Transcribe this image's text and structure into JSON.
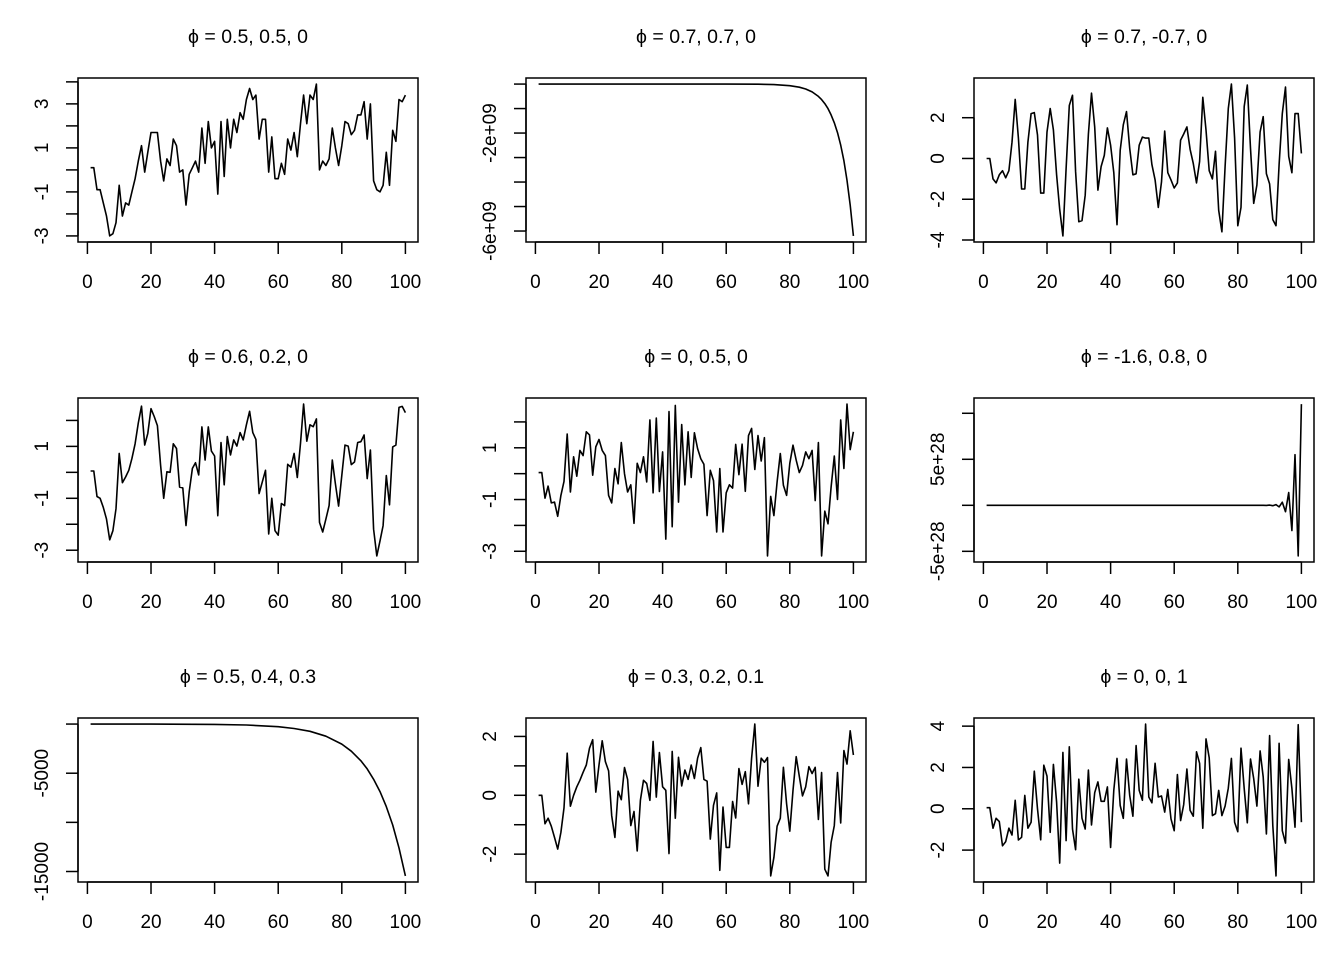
{
  "chart_data": [
    {
      "type": "line",
      "title": "ϕ = 0.5, 0.5, 0",
      "xlim": [
        1,
        100
      ],
      "xticks": [
        0,
        20,
        40,
        60,
        80,
        100
      ],
      "xtick_labels": [
        "0",
        "20",
        "40",
        "60",
        "80",
        "100"
      ],
      "yticks": [
        -3,
        -2,
        -1,
        0,
        1,
        2,
        3,
        4
      ],
      "ytick_labels": [
        "-3",
        "",
        "-1",
        "",
        "1",
        "",
        "3",
        ""
      ],
      "y": [
        0.1,
        0.1,
        -0.9,
        -0.9,
        -1.5,
        -2.1,
        -3.0,
        -2.9,
        -2.4,
        -0.7,
        -2.1,
        -1.5,
        -1.6,
        -1.0,
        -0.4,
        0.4,
        1.1,
        -0.1,
        0.8,
        1.7,
        1.7,
        1.7,
        0.4,
        -0.5,
        0.5,
        0.2,
        1.4,
        1.1,
        -0.1,
        0.0,
        -1.6,
        -0.2,
        0.1,
        0.4,
        -0.1,
        1.9,
        0.3,
        2.2,
        1.0,
        1.3,
        -1.1,
        2.2,
        -0.3,
        2.3,
        1.0,
        2.3,
        1.7,
        2.6,
        2.3,
        3.2,
        3.7,
        3.2,
        3.4,
        1.4,
        2.3,
        2.3,
        -0.1,
        1.5,
        -0.4,
        -0.4,
        0.3,
        -0.2,
        1.4,
        0.9,
        1.7,
        0.6,
        2.1,
        3.4,
        2.1,
        3.4,
        3.2,
        3.9,
        0.0,
        0.4,
        0.2,
        0.5,
        1.9,
        1.0,
        0.2,
        1.1,
        2.2,
        2.1,
        1.6,
        1.8,
        2.5,
        2.5,
        3.1,
        1.4,
        3.0,
        -0.5,
        -0.9,
        -1.0,
        -0.7,
        0.8,
        -0.7,
        1.8,
        1.3,
        3.2,
        3.1,
        3.4
      ]
    },
    {
      "type": "line",
      "title": "ϕ = 0.7, 0.7, 0",
      "xlim": [
        1,
        100
      ],
      "xticks": [
        0,
        20,
        40,
        60,
        80,
        100
      ],
      "xtick_labels": [
        "0",
        "20",
        "40",
        "60",
        "80",
        "100"
      ],
      "yticks": [
        0,
        -1000000000.0,
        -2000000000.0,
        -3000000000.0,
        -4000000000.0,
        -5000000000.0,
        -6000000000.0
      ],
      "ytick_labels": [
        "",
        "",
        "-2e+09",
        "",
        "",
        "",
        "-6e+09"
      ],
      "x": [
        1,
        40,
        60,
        70,
        75,
        80,
        83,
        85,
        87,
        89,
        90,
        91,
        92,
        93,
        94,
        95,
        96,
        97,
        98,
        99,
        100
      ],
      "y": [
        0,
        -7200,
        -680000.0,
        -6600000.0,
        -20800000.0,
        -65000000.0,
        -129000000.0,
        -203000000.0,
        -320000000.0,
        -505000000.0,
        -635000000.0,
        -797000000.0,
        -1000000000.0,
        -1260000000.0,
        -1580000000.0,
        -1980000000.0,
        -2490000000.0,
        -3130000000.0,
        -3930000000.0,
        -4940000000.0,
        -6200000000.0
      ]
    },
    {
      "type": "line",
      "title": "ϕ = 0.7, -0.7, 0",
      "xlim": [
        1,
        100
      ],
      "xticks": [
        0,
        20,
        40,
        60,
        80,
        100
      ],
      "xtick_labels": [
        "0",
        "20",
        "40",
        "60",
        "80",
        "100"
      ],
      "yticks": [
        -4,
        -2,
        0,
        2
      ],
      "ytick_labels": [
        "-4",
        "-2",
        "0",
        "2"
      ],
      "y": [
        0,
        0,
        -1,
        -1.2,
        -0.8,
        -0.6,
        -0.95,
        -0.6,
        0.8,
        2.9,
        1,
        -1.5,
        -1.5,
        0.8,
        2.2,
        2.25,
        1.15,
        -1.7,
        -1.7,
        1.3,
        2.45,
        1.4,
        -0.8,
        -2.5,
        -3.8,
        -0.5,
        2.6,
        3.1,
        -0.65,
        -3.1,
        -3.05,
        -1.8,
        1.2,
        3.2,
        1.55,
        -1.55,
        -0.4,
        0.15,
        1.5,
        0.65,
        -0.7,
        -3.25,
        0.4,
        1.65,
        2.3,
        0.5,
        -0.8,
        -0.75,
        0.65,
        1.05,
        1,
        1,
        -0.3,
        -1.05,
        -2.4,
        -1.15,
        1.35,
        -0.7,
        -1.05,
        -1.45,
        -1.2,
        0.9,
        1.2,
        1.55,
        0.45,
        -0.25,
        -1.2,
        -0.15,
        3,
        1.4,
        -0.6,
        -1,
        0.35,
        -2.55,
        -3.6,
        -0.4,
        2.45,
        3.65,
        1,
        -3.3,
        -2.4,
        2.55,
        3.6,
        0.5,
        -2.2,
        -1.3,
        1.3,
        2.05,
        -0.75,
        -1.25,
        -3,
        -3.3,
        -0.3,
        2.2,
        3.5,
        0.1,
        -0.7,
        2.2,
        2.2,
        0.25
      ]
    },
    {
      "type": "line",
      "title": "ϕ = 0.6, 0.2, 0",
      "xlim": [
        1,
        100
      ],
      "xticks": [
        0,
        20,
        40,
        60,
        80,
        100
      ],
      "xtick_labels": [
        "0",
        "20",
        "40",
        "60",
        "80",
        "100"
      ],
      "yticks": [
        -3,
        -2,
        -1,
        0,
        1,
        2
      ],
      "ytick_labels": [
        "-3",
        "",
        "-1",
        "",
        "1",
        ""
      ],
      "y": [
        0.05,
        0.05,
        -0.93,
        -1,
        -1.35,
        -1.8,
        -2.6,
        -2.25,
        -1.4,
        0.73,
        -0.4,
        -0.18,
        0.08,
        0.53,
        1.1,
        1.9,
        2.55,
        1.05,
        1.5,
        2.45,
        2.15,
        1.8,
        0.27,
        -1,
        0.02,
        0,
        1.1,
        0.92,
        -0.57,
        -0.6,
        -2.05,
        -0.75,
        0.15,
        0.37,
        -0.1,
        1.75,
        0.47,
        1.75,
        0.82,
        0.63,
        -1.67,
        1.15,
        -0.48,
        1.38,
        0.67,
        1.25,
        1.01,
        1.53,
        1.25,
        1.83,
        2.35,
        1.53,
        1.27,
        -0.82,
        -0.37,
        0.08,
        -2.37,
        -1,
        -2.25,
        -2.42,
        -1.2,
        -1.28,
        0.31,
        0.2,
        0.73,
        -0.2,
        1.12,
        2.63,
        1.2,
        1.83,
        1.76,
        2.06,
        -1.93,
        -2.3,
        -1.8,
        -1.28,
        0.47,
        -0.44,
        -1.3,
        -0.12,
        1.05,
        1.01,
        0.3,
        0.4,
        1.15,
        1.18,
        1.44,
        -0.24,
        0.86,
        -2.19,
        -3.22,
        -2.64,
        -2.05,
        -0.12,
        -1.25,
        0.98,
        1.05,
        2.5,
        2.54,
        2.3
      ]
    },
    {
      "type": "line",
      "title": "ϕ = 0, 0.5, 0",
      "xlim": [
        1,
        100
      ],
      "xticks": [
        0,
        20,
        40,
        60,
        80,
        100
      ],
      "xtick_labels": [
        "0",
        "20",
        "40",
        "60",
        "80",
        "100"
      ],
      "yticks": [
        -3,
        -2,
        -1,
        0,
        1,
        2
      ],
      "ytick_labels": [
        "-3",
        "",
        "-1",
        "",
        "1",
        ""
      ],
      "y": [
        0.04,
        0.04,
        -0.95,
        -0.48,
        -1.13,
        -1.1,
        -1.65,
        -0.84,
        -0.3,
        1.53,
        -0.71,
        0.65,
        -0.1,
        0.9,
        0.7,
        1.62,
        1.5,
        -0.06,
        1.04,
        1.32,
        0.9,
        0.7,
        -0.84,
        -1.13,
        0.2,
        -0.39,
        1.2,
        0,
        -0.71,
        -0.43,
        -1.92,
        0.4,
        0.04,
        0.65,
        -0.32,
        2.08,
        -0.74,
        2.15,
        -0.69,
        0.84,
        -2.53,
        2.4,
        -2.05,
        2.64,
        -1.1,
        1.9,
        -0.43,
        1.62,
        -0.15,
        1.58,
        0.97,
        0.58,
        0.36,
        -1.62,
        0.13,
        -0.27,
        -2.25,
        0.2,
        -2.25,
        -0.74,
        -0.43,
        -0.56,
        1.13,
        -0.04,
        1.14,
        -0.68,
        1.47,
        1.75,
        0.16,
        1.47,
        0.49,
        1.39,
        -3.18,
        -0.88,
        -1.62,
        -0.32,
        0.78,
        -0.45,
        -0.84,
        0.4,
        1.1,
        0.52,
        0.04,
        0.32,
        0.84,
        0.58,
        0.9,
        -1.04,
        1.2,
        -3.18,
        -1.45,
        -1.94,
        -0.52,
        0.68,
        -1,
        2.08,
        0.2,
        2.69,
        0.93,
        1.62
      ]
    },
    {
      "type": "line",
      "title": "ϕ = -1.6, 0.8, 0",
      "xlim": [
        1,
        100
      ],
      "xticks": [
        0,
        20,
        40,
        60,
        80,
        100
      ],
      "xtick_labels": [
        "0",
        "20",
        "40",
        "60",
        "80",
        "100"
      ],
      "yticks": [
        -5e+28,
        0,
        5e+28,
        1e+29
      ],
      "ytick_labels": [
        "-5e+28",
        "",
        "5e+28",
        ""
      ],
      "x": [
        1,
        88,
        89,
        90,
        91,
        92,
        93,
        94,
        95,
        96,
        97,
        98,
        99,
        100
      ],
      "y": [
        0,
        5e+25,
        -1e+26,
        2e+26,
        -4e+26,
        8e+26,
        -1.7e+27,
        3.4e+27,
        -6.9e+27,
        1.38e+28,
        -2.75e+28,
        5.5e+28,
        -5.5e+28,
        1.1e+29
      ]
    },
    {
      "type": "line",
      "title": "ϕ = 0.5, 0.4, 0.3",
      "xlim": [
        1,
        100
      ],
      "xticks": [
        0,
        20,
        40,
        60,
        80,
        100
      ],
      "xtick_labels": [
        "0",
        "20",
        "40",
        "60",
        "80",
        "100"
      ],
      "yticks": [
        0,
        -5000,
        -10000,
        -15000
      ],
      "ytick_labels": [
        "",
        "-5000",
        "",
        "-15000"
      ],
      "x": [
        1,
        20,
        40,
        50,
        60,
        65,
        70,
        75,
        80,
        83,
        86,
        88,
        90,
        92,
        94,
        96,
        98,
        100
      ],
      "y": [
        -1,
        -5,
        -36,
        -98,
        -270,
        -450,
        -740,
        -1230,
        -2040,
        -2760,
        -3740,
        -4560,
        -5620,
        -6870,
        -8400,
        -10270,
        -12600,
        -15450
      ]
    },
    {
      "type": "line",
      "title": "ϕ = 0.3, 0.2, 0.1",
      "xlim": [
        1,
        100
      ],
      "xticks": [
        0,
        20,
        40,
        60,
        80,
        100
      ],
      "xtick_labels": [
        "0",
        "20",
        "40",
        "60",
        "80",
        "100"
      ],
      "yticks": [
        -2,
        -1,
        0,
        1,
        2
      ],
      "ytick_labels": [
        "-2",
        "",
        "0",
        "",
        "2"
      ],
      "y": [
        0,
        0,
        -0.97,
        -0.78,
        -1.05,
        -1.43,
        -1.83,
        -1.26,
        -0.43,
        1.43,
        -0.37,
        0,
        0.29,
        0.51,
        0.78,
        1.03,
        1.6,
        1.89,
        0.11,
        1.03,
        1.85,
        1.14,
        0.83,
        -0.69,
        -1.43,
        0.14,
        -0.15,
        0.94,
        0.54,
        -1.03,
        -0.55,
        -1.89,
        -0.17,
        0.51,
        0.4,
        -0.17,
        1.83,
        -0.06,
        1.45,
        0.29,
        0.17,
        -1.98,
        1.49,
        -0.78,
        1.29,
        0.32,
        0.86,
        0.54,
        1.03,
        0.57,
        1.26,
        1.62,
        0.54,
        0.48,
        -1.49,
        -0.34,
        0.08,
        -2.55,
        -0.4,
        -1.77,
        -1.77,
        -0.21,
        -0.77,
        0.91,
        0.37,
        0.8,
        -0.29,
        1.26,
        2.42,
        0.31,
        1.26,
        1.12,
        1.28,
        -2.74,
        -2.11,
        -1.05,
        -0.78,
        0.95,
        -0.29,
        -1.22,
        0.17,
        1.31,
        0.65,
        -0.02,
        0.29,
        0.97,
        0.74,
        0.95,
        -0.82,
        0.77,
        -2.51,
        -2.74,
        -1.6,
        -1.03,
        0.77,
        -0.94,
        1.52,
        1.06,
        2.19,
        1.37
      ]
    },
    {
      "type": "line",
      "title": "ϕ = 0, 0, 1",
      "xlim": [
        1,
        100
      ],
      "xticks": [
        0,
        20,
        40,
        60,
        80,
        100
      ],
      "xtick_labels": [
        "0",
        "20",
        "40",
        "60",
        "80",
        "100"
      ],
      "yticks": [
        -2,
        0,
        2,
        4
      ],
      "ytick_labels": [
        "-2",
        "0",
        "2",
        "4"
      ],
      "y": [
        0.05,
        0.05,
        -0.94,
        -0.46,
        -0.62,
        -1.79,
        -1.59,
        -0.94,
        -1.27,
        0.41,
        -1.51,
        -1.38,
        0.65,
        -0.94,
        -0.65,
        1.82,
        0,
        -1.5,
        2.11,
        1.58,
        -1.14,
        2.15,
        0.33,
        -2.63,
        2.73,
        -1.54,
        3,
        -0.98,
        -1.98,
        1.43,
        -0.46,
        -0.98,
        1.87,
        -0.78,
        0.78,
        1.3,
        0.36,
        0.36,
        1.06,
        -1.87,
        0.9,
        2.44,
        0.16,
        -0.46,
        2.41,
        0.65,
        -0.36,
        3.06,
        0.89,
        0.41,
        4.1,
        0.57,
        0.29,
        2.2,
        0.57,
        0.62,
        -0.16,
        0.94,
        -0.49,
        -1.06,
        1.66,
        -0.57,
        0.2,
        1.92,
        -0.08,
        -0.36,
        2.76,
        2.2,
        -0.94,
        3.38,
        2.47,
        -0.33,
        -0.24,
        0.89,
        -0.33,
        0.13,
        1.0,
        2.44,
        -0.65,
        -1.11,
        2.93,
        0.98,
        -0.68,
        2.41,
        1.46,
        0.13,
        2.8,
        1.54,
        -1.22,
        3.54,
        -0.81,
        -3.25,
        3.17,
        -1.06,
        -1.66,
        2.39,
        0.98,
        -0.89,
        4.07,
        -0.65
      ]
    }
  ],
  "colors": {
    "line": "#000000",
    "background": "#ffffff"
  }
}
